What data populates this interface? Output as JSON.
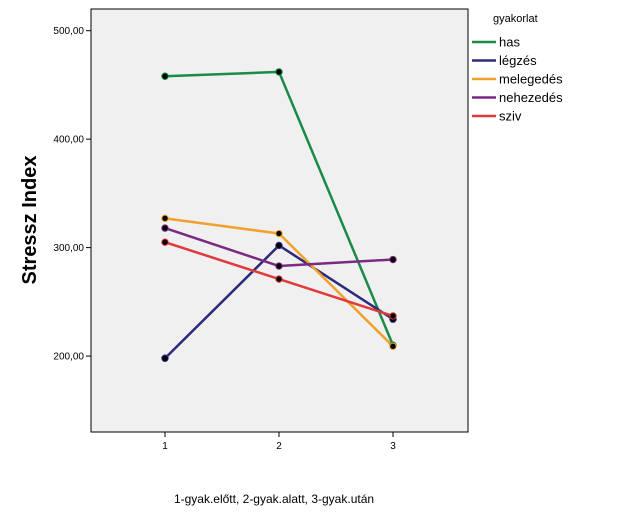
{
  "chart_data": {
    "type": "line",
    "x": [
      "1",
      "2",
      "3"
    ],
    "xlabel": "1-gyak.előtt, 2-gyak.alatt, 3-gyak.után",
    "ylabel": "Stressz Index",
    "ylim": [
      130,
      520
    ],
    "yticks": [
      200,
      300,
      400,
      500
    ],
    "ytick_labels": [
      "200,00",
      "300,00",
      "400,00",
      "500,00"
    ],
    "grid": false,
    "legend_title": "gyakorlat",
    "legend_position": "right",
    "series": [
      {
        "name": "has",
        "color": "#1a8a47",
        "values": [
          458,
          462,
          210
        ]
      },
      {
        "name": "légzés",
        "color": "#2b2b7a",
        "values": [
          198,
          302,
          234
        ]
      },
      {
        "name": "melegedés",
        "color": "#f2a12e",
        "values": [
          327,
          313,
          209
        ]
      },
      {
        "name": "nehezedés",
        "color": "#7b2a84",
        "values": [
          318,
          283,
          289
        ]
      },
      {
        "name": "sziv",
        "color": "#e03a3a",
        "values": [
          305,
          271,
          237
        ]
      }
    ]
  }
}
